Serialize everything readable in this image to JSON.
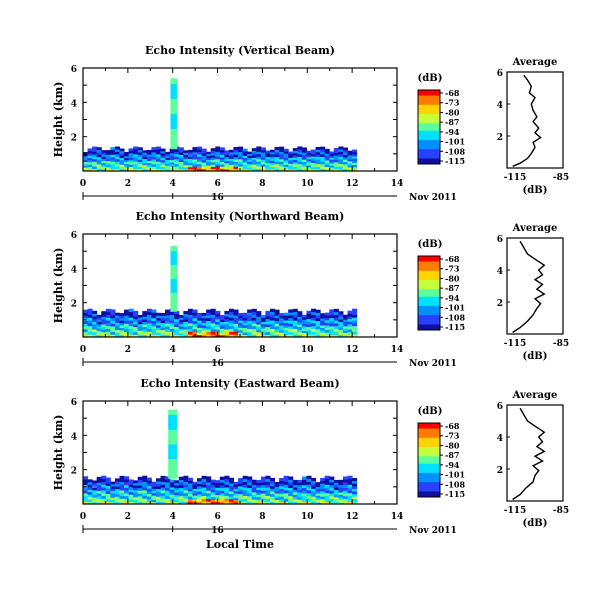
{
  "colorbar": {
    "unit": "(dB)",
    "ticks": [
      "-68",
      "-73",
      "-80",
      "-87",
      "-94",
      "-101",
      "-108",
      "-115"
    ],
    "colors": [
      "#ff0000",
      "#ff7a00",
      "#ffd400",
      "#c8ff3c",
      "#5cff9a",
      "#00e0ff",
      "#0090ff",
      "#2840ff",
      "#1010a0"
    ]
  },
  "time_axis": {
    "ticks": [
      "0",
      "2",
      "4",
      "6",
      "8",
      "10",
      "12",
      "14"
    ],
    "day_label": "16",
    "date_label": "Nov 2011",
    "xlabel": "Local Time"
  },
  "height_axis": {
    "ylabel": "Height (km)",
    "ticks": [
      "6",
      "4",
      "2"
    ]
  },
  "average_axis": {
    "title": "Average",
    "xticks": [
      "-115",
      "-85"
    ],
    "xlabel": "(dB)",
    "yticks": [
      "6",
      "4",
      "2"
    ]
  },
  "chart_data": [
    {
      "type": "heatmap",
      "title": "Echo Intensity (Vertical Beam)",
      "x_range": [
        0,
        14
      ],
      "y_range": [
        0,
        6
      ],
      "zero_gap_end_hour": 12.2,
      "layer_top_km": 1.3,
      "spike": {
        "x_start": 3.9,
        "x_end": 4.2,
        "top_km": 5.4
      },
      "profile": [
        [
          -112,
          0.1
        ],
        [
          -108,
          0.3
        ],
        [
          -104,
          0.6
        ],
        [
          -102,
          0.9
        ],
        [
          -100,
          1.3
        ],
        [
          -101,
          1.6
        ],
        [
          -97,
          1.9
        ],
        [
          -100,
          2.2
        ],
        [
          -98,
          2.5
        ],
        [
          -101,
          2.9
        ],
        [
          -99,
          3.2
        ],
        [
          -101,
          3.6
        ],
        [
          -102,
          4.0
        ],
        [
          -100,
          4.4
        ],
        [
          -103,
          4.7
        ],
        [
          -102,
          5.1
        ],
        [
          -104,
          5.5
        ],
        [
          -106,
          5.8
        ]
      ]
    },
    {
      "type": "heatmap",
      "title": "Echo Intensity (Northward Beam)",
      "x_range": [
        0,
        14
      ],
      "y_range": [
        0,
        6
      ],
      "zero_gap_end_hour": 12.2,
      "layer_top_km": 1.5,
      "spike": {
        "x_start": 3.9,
        "x_end": 4.2,
        "top_km": 5.3
      },
      "profile": [
        [
          -112,
          0.1
        ],
        [
          -108,
          0.4
        ],
        [
          -104,
          0.8
        ],
        [
          -101,
          1.2
        ],
        [
          -99,
          1.6
        ],
        [
          -97,
          1.9
        ],
        [
          -100,
          2.2
        ],
        [
          -95,
          2.5
        ],
        [
          -99,
          2.8
        ],
        [
          -96,
          3.1
        ],
        [
          -100,
          3.4
        ],
        [
          -96,
          3.7
        ],
        [
          -98,
          4.0
        ],
        [
          -95,
          4.3
        ],
        [
          -99,
          4.6
        ],
        [
          -104,
          5.0
        ],
        [
          -106,
          5.4
        ],
        [
          -108,
          5.8
        ]
      ]
    },
    {
      "type": "heatmap",
      "title": "Echo Intensity (Eastward Beam)",
      "x_range": [
        0,
        14
      ],
      "y_range": [
        0,
        6
      ],
      "zero_gap_end_hour": 12.2,
      "layer_top_km": 1.5,
      "spike": {
        "x_start": 3.8,
        "x_end": 4.2,
        "top_km": 5.5
      },
      "profile": [
        [
          -112,
          0.1
        ],
        [
          -108,
          0.4
        ],
        [
          -105,
          0.8
        ],
        [
          -101,
          1.2
        ],
        [
          -100,
          1.6
        ],
        [
          -98,
          1.9
        ],
        [
          -101,
          2.2
        ],
        [
          -96,
          2.5
        ],
        [
          -100,
          2.8
        ],
        [
          -95,
          3.1
        ],
        [
          -99,
          3.4
        ],
        [
          -96,
          3.7
        ],
        [
          -98,
          4.0
        ],
        [
          -95,
          4.3
        ],
        [
          -99,
          4.6
        ],
        [
          -104,
          5.0
        ],
        [
          -106,
          5.4
        ],
        [
          -108,
          5.8
        ]
      ]
    }
  ]
}
